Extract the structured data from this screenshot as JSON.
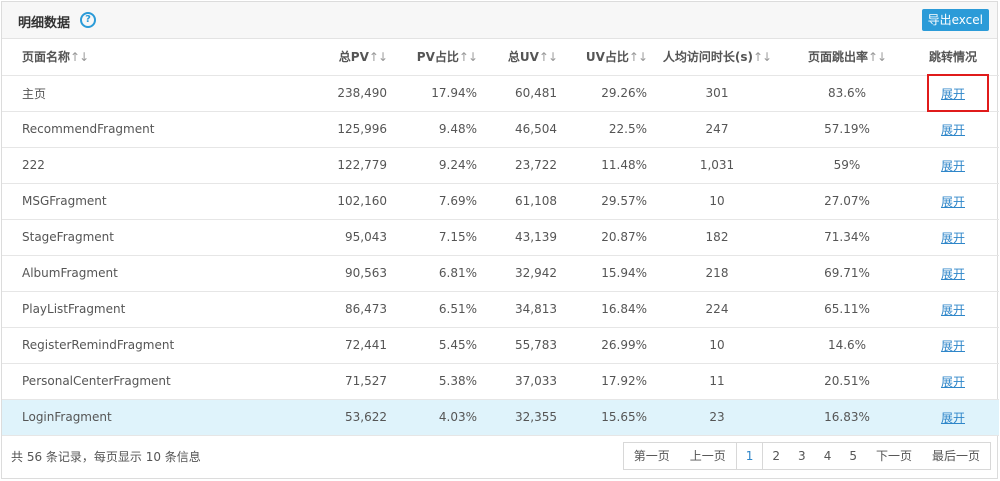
{
  "panel": {
    "title": "明细数据",
    "help_icon": "?",
    "export_label": "导出excel"
  },
  "sort_icon": "↑↓",
  "columns": [
    "页面名称",
    "总PV",
    "PV占比",
    "总UV",
    "UV占比",
    "人均访问时长(s)",
    "页面跳出率",
    "跳转情况"
  ],
  "rows": [
    {
      "name": "主页",
      "pv": "238,490",
      "pv_ratio": "17.94%",
      "uv": "60,481",
      "uv_ratio": "29.26%",
      "avg_time": "301",
      "bounce": "83.6%",
      "action": "展开"
    },
    {
      "name": "RecommendFragment",
      "pv": "125,996",
      "pv_ratio": "9.48%",
      "uv": "46,504",
      "uv_ratio": "22.5%",
      "avg_time": "247",
      "bounce": "57.19%",
      "action": "展开"
    },
    {
      "name": "222",
      "pv": "122,779",
      "pv_ratio": "9.24%",
      "uv": "23,722",
      "uv_ratio": "11.48%",
      "avg_time": "1,031",
      "bounce": "59%",
      "action": "展开"
    },
    {
      "name": "MSGFragment",
      "pv": "102,160",
      "pv_ratio": "7.69%",
      "uv": "61,108",
      "uv_ratio": "29.57%",
      "avg_time": "10",
      "bounce": "27.07%",
      "action": "展开"
    },
    {
      "name": "StageFragment",
      "pv": "95,043",
      "pv_ratio": "7.15%",
      "uv": "43,139",
      "uv_ratio": "20.87%",
      "avg_time": "182",
      "bounce": "71.34%",
      "action": "展开"
    },
    {
      "name": "AlbumFragment",
      "pv": "90,563",
      "pv_ratio": "6.81%",
      "uv": "32,942",
      "uv_ratio": "15.94%",
      "avg_time": "218",
      "bounce": "69.71%",
      "action": "展开"
    },
    {
      "name": "PlayListFragment",
      "pv": "86,473",
      "pv_ratio": "6.51%",
      "uv": "34,813",
      "uv_ratio": "16.84%",
      "avg_time": "224",
      "bounce": "65.11%",
      "action": "展开"
    },
    {
      "name": "RegisterRemindFragment",
      "pv": "72,441",
      "pv_ratio": "5.45%",
      "uv": "55,783",
      "uv_ratio": "26.99%",
      "avg_time": "10",
      "bounce": "14.6%",
      "action": "展开"
    },
    {
      "name": "PersonalCenterFragment",
      "pv": "71,527",
      "pv_ratio": "5.38%",
      "uv": "37,033",
      "uv_ratio": "17.92%",
      "avg_time": "11",
      "bounce": "20.51%",
      "action": "展开"
    },
    {
      "name": "LoginFragment",
      "pv": "53,622",
      "pv_ratio": "4.03%",
      "uv": "32,355",
      "uv_ratio": "15.65%",
      "avg_time": "23",
      "bounce": "16.83%",
      "action": "展开"
    }
  ],
  "footer": {
    "info": "共 56 条记录，每页显示 10 条信息"
  },
  "pagination": [
    "第一页",
    "上一页",
    "1",
    "2",
    "3",
    "4",
    "5",
    "下一页",
    "最后一页"
  ],
  "colors": {
    "accent": "#2b9bd8",
    "highlight": "#dff3fb",
    "link": "#2f86c9",
    "annotation": "#e01b1b"
  }
}
